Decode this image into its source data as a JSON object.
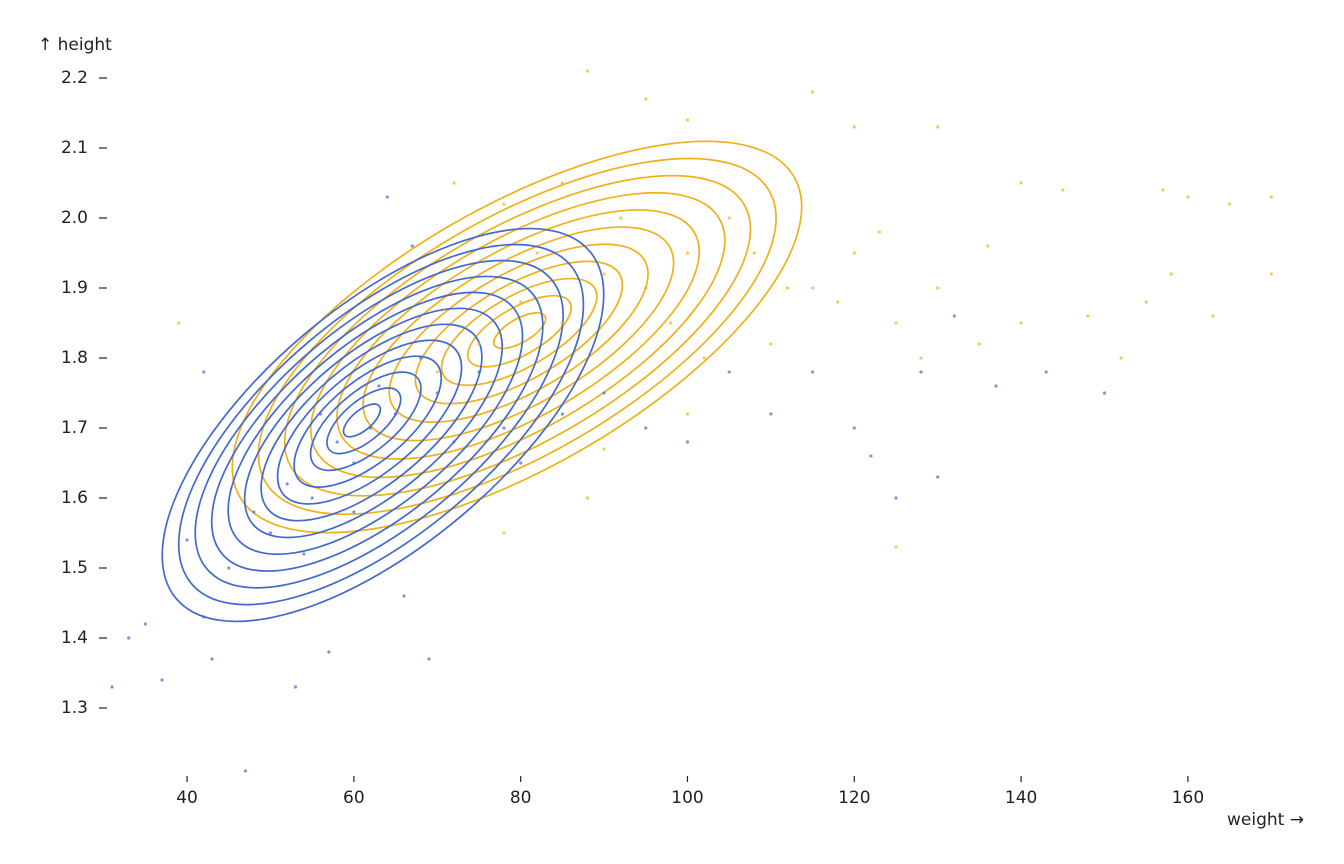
{
  "chart_data": {
    "type": "scatter",
    "x_label": "weight →",
    "y_label": "↑ height",
    "xlim": [
      31,
      172
    ],
    "ylim": [
      1.2,
      2.23
    ],
    "xticks": [
      40,
      60,
      80,
      100,
      120,
      140,
      160
    ],
    "yticks": [
      1.3,
      1.4,
      1.5,
      1.6,
      1.7,
      1.8,
      1.9,
      {
        "value": 2,
        "label": "2.0"
      },
      2.1,
      2.2
    ],
    "series": [
      {
        "color": "#4269d0",
        "x": [
          33,
          31,
          35,
          37,
          43,
          53,
          47,
          57,
          69,
          66,
          42,
          45,
          40,
          50,
          55,
          60,
          62,
          65,
          58,
          52,
          48,
          70,
          75,
          68,
          63,
          56,
          72,
          78,
          80,
          85,
          90,
          95,
          100,
          105,
          110,
          115,
          120,
          122,
          125,
          130,
          128,
          137,
          143,
          150,
          132,
          64,
          67,
          42,
          60,
          54
        ],
        "values": [
          1.4,
          1.33,
          1.42,
          1.34,
          1.37,
          1.33,
          1.21,
          1.38,
          1.37,
          1.46,
          1.43,
          1.5,
          1.54,
          1.55,
          1.6,
          1.65,
          1.7,
          1.72,
          1.68,
          1.62,
          1.58,
          1.75,
          1.78,
          1.8,
          1.76,
          1.72,
          1.68,
          1.7,
          1.65,
          1.72,
          1.75,
          1.7,
          1.68,
          1.78,
          1.72,
          1.78,
          1.7,
          1.66,
          1.6,
          1.63,
          1.78,
          1.76,
          1.78,
          1.75,
          1.86,
          2.03,
          1.96,
          1.78,
          1.58,
          1.52
        ]
      },
      {
        "color": "#efb118",
        "x": [
          88,
          95,
          100,
          115,
          120,
          130,
          140,
          145,
          157,
          160,
          165,
          170,
          170,
          163,
          158,
          155,
          152,
          148,
          140,
          135,
          130,
          125,
          120,
          118,
          112,
          108,
          105,
          100,
          95,
          90,
          85,
          80,
          75,
          70,
          78,
          85,
          92,
          98,
          102,
          110,
          39,
          125,
          78,
          88,
          90,
          100,
          115,
          123,
          128,
          136,
          82,
          72
        ],
        "values": [
          2.21,
          2.17,
          2.14,
          2.18,
          2.13,
          2.13,
          2.05,
          2.04,
          2.04,
          2.03,
          2.02,
          2.03,
          1.92,
          1.86,
          1.92,
          1.88,
          1.8,
          1.86,
          1.85,
          1.82,
          1.9,
          1.85,
          1.95,
          1.88,
          1.9,
          1.95,
          2.0,
          1.95,
          1.9,
          1.92,
          1.85,
          1.88,
          1.82,
          1.78,
          2.02,
          2.05,
          2.0,
          1.85,
          1.8,
          1.82,
          1.85,
          1.53,
          1.55,
          1.6,
          1.67,
          1.72,
          1.9,
          1.98,
          1.8,
          1.96,
          1.95,
          2.05
        ]
      }
    ]
  }
}
